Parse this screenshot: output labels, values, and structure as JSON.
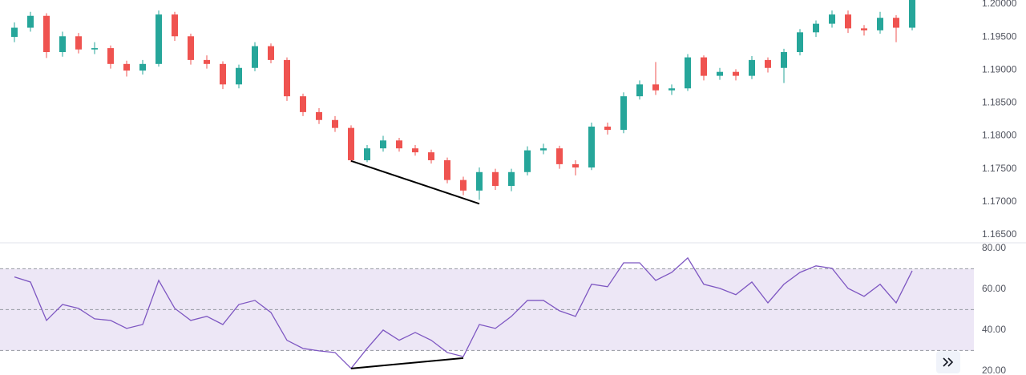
{
  "chart_data": [
    {
      "type": "candlestick",
      "ohlc": [
        [
          1.195,
          1.1972,
          1.1942,
          1.1964
        ],
        [
          1.1964,
          1.1988,
          1.1958,
          1.1982
        ],
        [
          1.1982,
          1.1986,
          1.1918,
          1.1927
        ],
        [
          1.1927,
          1.1958,
          1.192,
          1.1951
        ],
        [
          1.1951,
          1.1956,
          1.1925,
          1.1931
        ],
        [
          1.1931,
          1.1942,
          1.1924,
          1.1933
        ],
        [
          1.1933,
          1.1937,
          1.1902,
          1.1909
        ],
        [
          1.1909,
          1.1914,
          1.189,
          1.1899
        ],
        [
          1.1899,
          1.1915,
          1.1893,
          1.1909
        ],
        [
          1.1909,
          1.199,
          1.1905,
          1.1984
        ],
        [
          1.1984,
          1.1988,
          1.1944,
          1.1951
        ],
        [
          1.1951,
          1.1955,
          1.1908,
          1.1915
        ],
        [
          1.1915,
          1.1922,
          1.1902,
          1.1909
        ],
        [
          1.1909,
          1.1913,
          1.1871,
          1.1878
        ],
        [
          1.1878,
          1.1908,
          1.1872,
          1.1903
        ],
        [
          1.1903,
          1.1942,
          1.1898,
          1.1936
        ],
        [
          1.1936,
          1.194,
          1.191,
          1.1915
        ],
        [
          1.1915,
          1.1919,
          1.1853,
          1.186
        ],
        [
          1.186,
          1.1864,
          1.183,
          1.1836
        ],
        [
          1.1836,
          1.1842,
          1.1818,
          1.1824
        ],
        [
          1.1824,
          1.183,
          1.1806,
          1.1812
        ],
        [
          1.1812,
          1.1816,
          1.176,
          1.1763
        ],
        [
          1.1763,
          1.1786,
          1.176,
          1.1781
        ],
        [
          1.1781,
          1.18,
          1.1776,
          1.1793
        ],
        [
          1.1793,
          1.1797,
          1.1776,
          1.1781
        ],
        [
          1.1781,
          1.1786,
          1.177,
          1.1775
        ],
        [
          1.1775,
          1.1779,
          1.1758,
          1.1763
        ],
        [
          1.1763,
          1.1767,
          1.1728,
          1.1733
        ],
        [
          1.1733,
          1.1738,
          1.171,
          1.1717
        ],
        [
          1.1717,
          1.1752,
          1.1703,
          1.1745
        ],
        [
          1.1745,
          1.175,
          1.1718,
          1.1724
        ],
        [
          1.1724,
          1.175,
          1.1716,
          1.1745
        ],
        [
          1.1745,
          1.1784,
          1.174,
          1.1778
        ],
        [
          1.1778,
          1.1788,
          1.1772,
          1.1781
        ],
        [
          1.1781,
          1.1785,
          1.175,
          1.1757
        ],
        [
          1.1757,
          1.1763,
          1.174,
          1.1752
        ],
        [
          1.1752,
          1.182,
          1.1748,
          1.1814
        ],
        [
          1.1814,
          1.182,
          1.1802,
          1.1809
        ],
        [
          1.1809,
          1.1866,
          1.1804,
          1.186
        ],
        [
          1.186,
          1.1884,
          1.1855,
          1.1878
        ],
        [
          1.1878,
          1.1912,
          1.1862,
          1.1869
        ],
        [
          1.1869,
          1.1878,
          1.1862,
          1.1872
        ],
        [
          1.1872,
          1.1924,
          1.1868,
          1.1919
        ],
        [
          1.1919,
          1.1922,
          1.1884,
          1.1891
        ],
        [
          1.1891,
          1.1903,
          1.1885,
          1.1897
        ],
        [
          1.1897,
          1.1901,
          1.1884,
          1.1891
        ],
        [
          1.1891,
          1.1921,
          1.1886,
          1.1915
        ],
        [
          1.1915,
          1.1919,
          1.1896,
          1.1903
        ],
        [
          1.1903,
          1.1932,
          1.188,
          1.1927
        ],
        [
          1.1927,
          1.1962,
          1.1922,
          1.1957
        ],
        [
          1.1957,
          1.1975,
          1.195,
          1.197
        ],
        [
          1.197,
          1.199,
          1.1964,
          1.1984
        ],
        [
          1.1984,
          1.199,
          1.1956,
          1.1963
        ],
        [
          1.1963,
          1.1968,
          1.1952,
          1.196
        ],
        [
          1.196,
          1.1988,
          1.1955,
          1.1979
        ],
        [
          1.1979,
          1.1983,
          1.1942,
          1.1964
        ],
        [
          1.1964,
          1.2006,
          1.196,
          1.2006
        ]
      ],
      "up_color": "#26a69a",
      "down_color": "#ef5350",
      "ylim": [
        1.1639,
        1.2006
      ],
      "yticks": [
        {
          "value": 1.165,
          "label": "1.16500"
        },
        {
          "value": 1.17,
          "label": "1.17000"
        },
        {
          "value": 1.175,
          "label": "1.17500"
        },
        {
          "value": 1.18,
          "label": "1.18000"
        },
        {
          "value": 1.185,
          "label": "1.18500"
        },
        {
          "value": 1.19,
          "label": "1.19000"
        },
        {
          "value": 1.195,
          "label": "1.19500"
        },
        {
          "value": 1.2,
          "label": "1.20000"
        }
      ],
      "trendline": {
        "x": [
          21,
          29
        ],
        "y": [
          1.1762,
          1.1697
        ],
        "color": "#000000"
      }
    },
    {
      "type": "line",
      "values": [
        66,
        63.5,
        44.7,
        52.5,
        50.6,
        45.5,
        44.7,
        40.8,
        42.7,
        64.3,
        50.6,
        44.7,
        46.7,
        42.7,
        52.5,
        54.5,
        48.6,
        35,
        31,
        29.8,
        29,
        21.2,
        31,
        40,
        35,
        38.8,
        35,
        29,
        27,
        42.7,
        40.8,
        46.7,
        54.5,
        54.5,
        49.4,
        46.7,
        62.4,
        61.2,
        72.9,
        72.9,
        64.3,
        68.2,
        75.3,
        62.4,
        60.4,
        57.3,
        63.5,
        53.3,
        62.4,
        68.2,
        71.4,
        70.2,
        60.4,
        56.5,
        62.4,
        53.3,
        69
      ],
      "color": "#7e57c2",
      "band_color": "#ede7f6",
      "ylim": [
        18,
        82.7
      ],
      "yticks": [
        {
          "value": 20,
          "label": "20.00"
        },
        {
          "value": 40,
          "label": "40.00"
        },
        {
          "value": 60,
          "label": "60.00"
        },
        {
          "value": 80,
          "label": "80.00"
        }
      ],
      "levels": [
        30,
        50,
        70
      ],
      "trendline": {
        "x": [
          21,
          28
        ],
        "y": [
          21.2,
          26.3
        ],
        "color": "#000000"
      }
    }
  ]
}
